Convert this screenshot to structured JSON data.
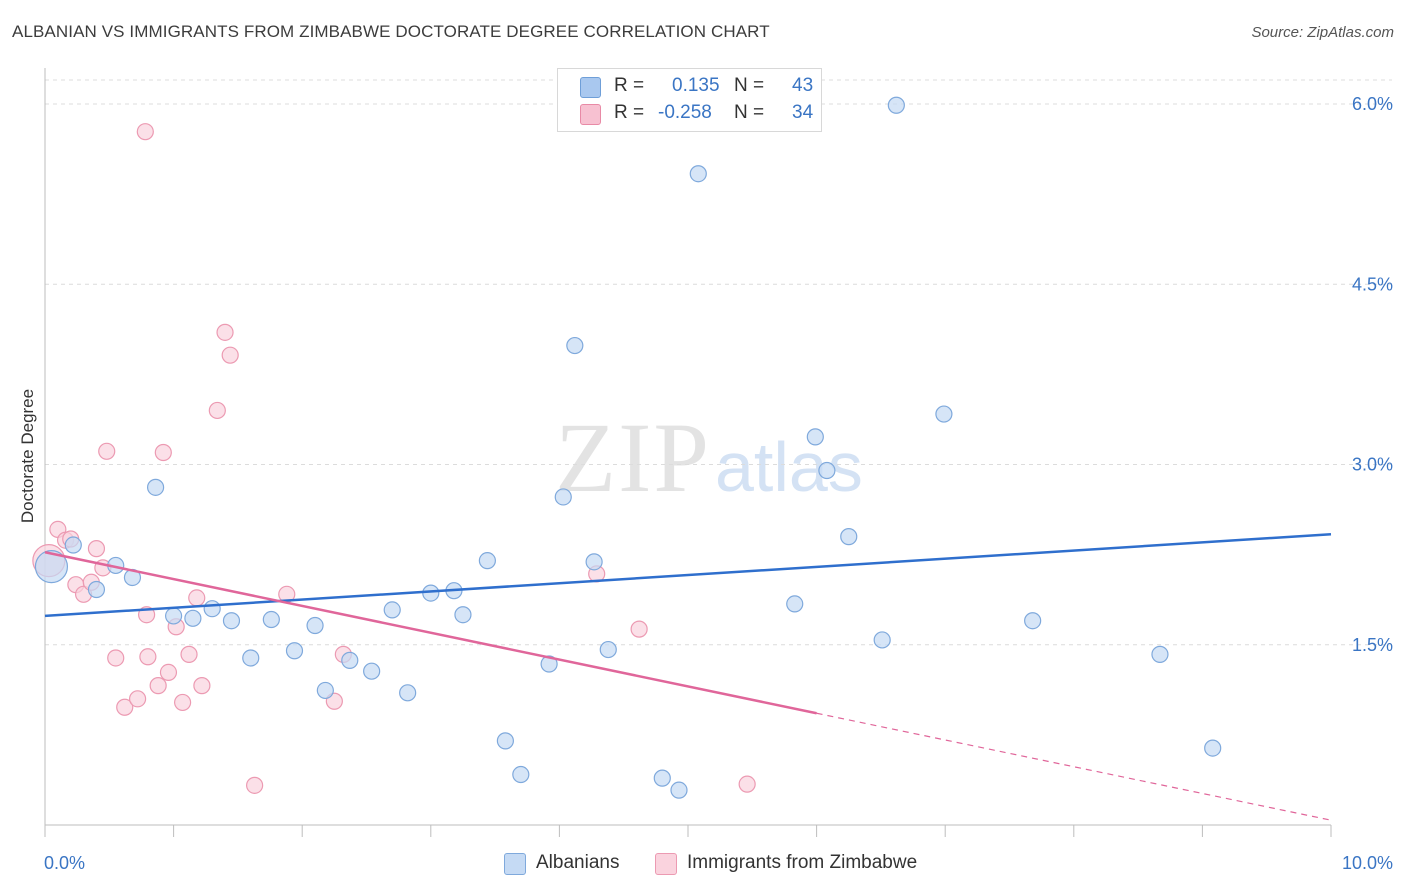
{
  "title": "ALBANIAN VS IMMIGRANTS FROM ZIMBABWE DOCTORATE DEGREE CORRELATION CHART",
  "source": "Source: ZipAtlas.com",
  "watermark": {
    "zip": "ZIP",
    "atlas": "atlas"
  },
  "legend": {
    "rows": [
      {
        "r_label": "R =",
        "r_value": "0.135",
        "n_label": "N =",
        "n_value": "43",
        "color": "#a9c8ef",
        "border": "#6f9fd8"
      },
      {
        "r_label": "R =",
        "r_value": "-0.258",
        "n_label": "N =",
        "n_value": "34",
        "color": "#f7c1d1",
        "border": "#e88aa6"
      }
    ]
  },
  "bottom_legend": [
    {
      "label": "Albanians",
      "color": "#c5daf4",
      "border": "#7fa9dc"
    },
    {
      "label": "Immigrants from Zimbabwe",
      "color": "#fad3de",
      "border": "#ec9ab2"
    }
  ],
  "chart_data": {
    "type": "scatter",
    "title": "ALBANIAN VS IMMIGRANTS FROM ZIMBABWE DOCTORATE DEGREE CORRELATION CHART",
    "xlabel": "",
    "ylabel": "Doctorate Degree",
    "xlim": [
      0,
      10
    ],
    "ylim": [
      0,
      6.2
    ],
    "x_tick_labels": {
      "min": "0.0%",
      "max": "10.0%"
    },
    "y_ticks": [
      {
        "value": 1.5,
        "label": "1.5%"
      },
      {
        "value": 3.0,
        "label": "3.0%"
      },
      {
        "value": 4.5,
        "label": "4.5%"
      },
      {
        "value": 6.0,
        "label": "6.0%"
      }
    ],
    "colors": {
      "albanians_fill": "#c5daf4",
      "albanians_stroke": "#7fa9dc",
      "albanians_line": "#2f6fcd",
      "zimbabwe_fill": "#fad3de",
      "zimbabwe_stroke": "#ec9ab2",
      "zimbabwe_line": "#e0669a",
      "grid": "#dcdcdc",
      "axis": "#bdbdbd",
      "tick_label": "#3a75c4"
    },
    "series": [
      {
        "name": "Albanians",
        "R": 0.135,
        "N": 43,
        "trend": {
          "x": [
            0,
            10
          ],
          "y": [
            1.74,
            2.42
          ]
        },
        "points": [
          {
            "x": 0.05,
            "y": 2.15,
            "big": true
          },
          {
            "x": 0.22,
            "y": 2.33
          },
          {
            "x": 0.4,
            "y": 1.96
          },
          {
            "x": 0.55,
            "y": 2.16
          },
          {
            "x": 0.68,
            "y": 2.06
          },
          {
            "x": 0.86,
            "y": 2.81
          },
          {
            "x": 1.0,
            "y": 1.74
          },
          {
            "x": 1.15,
            "y": 1.72
          },
          {
            "x": 1.3,
            "y": 1.8
          },
          {
            "x": 1.45,
            "y": 1.7
          },
          {
            "x": 1.6,
            "y": 1.39
          },
          {
            "x": 1.76,
            "y": 1.71
          },
          {
            "x": 1.94,
            "y": 1.45
          },
          {
            "x": 2.1,
            "y": 1.66
          },
          {
            "x": 2.18,
            "y": 1.12
          },
          {
            "x": 2.37,
            "y": 1.37
          },
          {
            "x": 2.54,
            "y": 1.28
          },
          {
            "x": 2.7,
            "y": 1.79
          },
          {
            "x": 2.82,
            "y": 1.1
          },
          {
            "x": 3.0,
            "y": 1.93
          },
          {
            "x": 3.18,
            "y": 1.95
          },
          {
            "x": 3.25,
            "y": 1.75
          },
          {
            "x": 3.44,
            "y": 2.2
          },
          {
            "x": 3.58,
            "y": 0.7
          },
          {
            "x": 3.7,
            "y": 0.42
          },
          {
            "x": 3.92,
            "y": 1.34
          },
          {
            "x": 4.03,
            "y": 2.73
          },
          {
            "x": 4.12,
            "y": 3.99
          },
          {
            "x": 4.27,
            "y": 2.19
          },
          {
            "x": 4.38,
            "y": 1.46
          },
          {
            "x": 4.8,
            "y": 0.39
          },
          {
            "x": 4.93,
            "y": 0.29
          },
          {
            "x": 5.08,
            "y": 5.42
          },
          {
            "x": 5.83,
            "y": 1.84
          },
          {
            "x": 5.99,
            "y": 3.23
          },
          {
            "x": 6.08,
            "y": 2.95
          },
          {
            "x": 6.25,
            "y": 2.4
          },
          {
            "x": 6.51,
            "y": 1.54
          },
          {
            "x": 6.62,
            "y": 5.99
          },
          {
            "x": 6.99,
            "y": 3.42
          },
          {
            "x": 7.68,
            "y": 1.7
          },
          {
            "x": 8.67,
            "y": 1.42
          },
          {
            "x": 9.08,
            "y": 0.64
          }
        ]
      },
      {
        "name": "Immigrants from Zimbabwe",
        "R": -0.258,
        "N": 34,
        "trend": {
          "x": [
            0,
            6.0
          ],
          "y": [
            2.27,
            0.93
          ]
        },
        "trend_dashed": {
          "x": [
            6.0,
            10
          ],
          "y": [
            0.93,
            0.04
          ]
        },
        "points": [
          {
            "x": 0.03,
            "y": 2.2,
            "big": true
          },
          {
            "x": 0.1,
            "y": 2.46
          },
          {
            "x": 0.16,
            "y": 2.37
          },
          {
            "x": 0.2,
            "y": 2.38
          },
          {
            "x": 0.24,
            "y": 2.0
          },
          {
            "x": 0.3,
            "y": 1.92
          },
          {
            "x": 0.36,
            "y": 2.02
          },
          {
            "x": 0.4,
            "y": 2.3
          },
          {
            "x": 0.45,
            "y": 2.14
          },
          {
            "x": 0.48,
            "y": 3.11
          },
          {
            "x": 0.55,
            "y": 1.39
          },
          {
            "x": 0.62,
            "y": 0.98
          },
          {
            "x": 0.72,
            "y": 1.05
          },
          {
            "x": 0.78,
            "y": 5.77
          },
          {
            "x": 0.79,
            "y": 1.75
          },
          {
            "x": 0.8,
            "y": 1.4
          },
          {
            "x": 0.88,
            "y": 1.16
          },
          {
            "x": 0.92,
            "y": 3.1
          },
          {
            "x": 0.96,
            "y": 1.27
          },
          {
            "x": 1.02,
            "y": 1.65
          },
          {
            "x": 1.07,
            "y": 1.02
          },
          {
            "x": 1.12,
            "y": 1.42
          },
          {
            "x": 1.18,
            "y": 1.89
          },
          {
            "x": 1.22,
            "y": 1.16
          },
          {
            "x": 1.34,
            "y": 3.45
          },
          {
            "x": 1.4,
            "y": 4.1
          },
          {
            "x": 1.44,
            "y": 3.91
          },
          {
            "x": 1.63,
            "y": 0.33
          },
          {
            "x": 1.88,
            "y": 1.92
          },
          {
            "x": 2.25,
            "y": 1.03
          },
          {
            "x": 2.32,
            "y": 1.42
          },
          {
            "x": 4.29,
            "y": 2.09
          },
          {
            "x": 4.62,
            "y": 1.63
          },
          {
            "x": 5.46,
            "y": 0.34
          }
        ]
      }
    ]
  }
}
